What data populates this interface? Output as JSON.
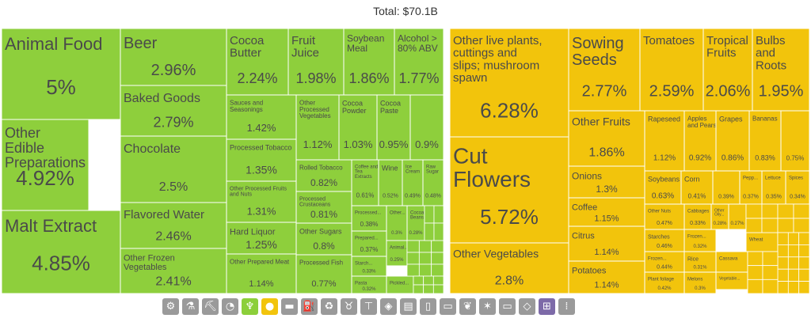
{
  "total_label": "Total: $70.1B",
  "colors": {
    "green": "#8ecf3c",
    "yellow": "#f2c40c",
    "stroke": "#ffffff",
    "text": "#4a4a4a"
  },
  "chart_data": {
    "type": "treemap",
    "title": "Total: $70.1B",
    "groups": [
      {
        "color": "green",
        "items": [
          {
            "name": "Animal Food",
            "share": 5.0
          },
          {
            "name": "Other Edible Preparations",
            "share": 4.92
          },
          {
            "name": "Malt Extract",
            "share": 4.85
          },
          {
            "name": "Beer",
            "share": 2.96
          },
          {
            "name": "Baked Goods",
            "share": 2.79
          },
          {
            "name": "Chocolate",
            "share": 2.5
          },
          {
            "name": "Flavored Water",
            "share": 2.46
          },
          {
            "name": "Other Frozen Vegetables",
            "share": 2.41
          },
          {
            "name": "Cocoa Butter",
            "share": 2.24
          },
          {
            "name": "Fruit Juice",
            "share": 1.98
          },
          {
            "name": "Soybean Meal",
            "share": 1.86
          },
          {
            "name": "Alcohol > 80% ABV",
            "share": 1.77
          },
          {
            "name": "Sauces and Seasonings",
            "share": 1.42
          },
          {
            "name": "Processed Tobacco",
            "share": 1.35
          },
          {
            "name": "Other Processed Fruits and Nuts",
            "share": 1.31
          },
          {
            "name": "Hard Liquor",
            "share": 1.25
          },
          {
            "name": "Other Prepared Meat",
            "share": 1.14
          },
          {
            "name": "Other Processed Vegetables",
            "share": 1.12
          },
          {
            "name": "Cocoa Powder",
            "share": 1.03
          },
          {
            "name": "Cocoa Paste",
            "share": 0.95
          },
          {
            "name": "",
            "share": 0.9
          },
          {
            "name": "Rolled Tobacco",
            "share": 0.82
          },
          {
            "name": "Processed Crustaceans",
            "share": 0.81
          },
          {
            "name": "Other Sugars",
            "share": 0.8
          },
          {
            "name": "Processed Fish",
            "share": 0.77
          },
          {
            "name": "Coffee and Tea Extracts",
            "share": 0.61
          },
          {
            "name": "Wine",
            "share": 0.52
          },
          {
            "name": "Ice Cream",
            "share": 0.49
          },
          {
            "name": "Raw Sugar",
            "share": 0.48
          },
          {
            "name": "Processed...",
            "share": 0.38
          },
          {
            "name": "Prepared...",
            "share": 0.37
          },
          {
            "name": "Starch...",
            "share": 0.33
          },
          {
            "name": "Pasta",
            "share": 0.32
          },
          {
            "name": "Other...",
            "share": 0.3
          },
          {
            "name": "Animal...",
            "share": 0.25
          },
          {
            "name": "Cocoa Beans",
            "share": 0.28
          },
          {
            "name": "Pickled...",
            "share": 0.0
          }
        ]
      },
      {
        "color": "yellow",
        "items": [
          {
            "name": "Other live plants, cuttings and slips; mushroom spawn",
            "share": 6.28
          },
          {
            "name": "Cut Flowers",
            "share": 5.72
          },
          {
            "name": "Other Vegetables",
            "share": 2.8
          },
          {
            "name": "Sowing Seeds",
            "share": 2.77
          },
          {
            "name": "Tomatoes",
            "share": 2.59
          },
          {
            "name": "Tropical Fruits",
            "share": 2.06
          },
          {
            "name": "Bulbs and Roots",
            "share": 1.95
          },
          {
            "name": "Other Fruits",
            "share": 1.86
          },
          {
            "name": "Onions",
            "share": 1.3
          },
          {
            "name": "Coffee",
            "share": 1.15
          },
          {
            "name": "Citrus",
            "share": 1.14
          },
          {
            "name": "Potatoes",
            "share": 1.14
          },
          {
            "name": "Rapeseed",
            "share": 1.12
          },
          {
            "name": "Apples and Pears",
            "share": 0.92
          },
          {
            "name": "Grapes",
            "share": 0.86
          },
          {
            "name": "Bananas",
            "share": 0.83
          },
          {
            "name": "",
            "share": 0.75
          },
          {
            "name": "Soybeans",
            "share": 0.63
          },
          {
            "name": "Corn",
            "share": 0.41
          },
          {
            "name": "",
            "share": 0.39
          },
          {
            "name": "Pepp...",
            "share": 0.37
          },
          {
            "name": "Lettuce",
            "share": 0.35
          },
          {
            "name": "Spices",
            "share": 0.34
          },
          {
            "name": "Other Nuts",
            "share": 0.47
          },
          {
            "name": "Cabbages",
            "share": 0.33
          },
          {
            "name": "Other Oily...",
            "share": 0.28
          },
          {
            "name": "",
            "share": 0.27
          },
          {
            "name": "Starches",
            "share": 0.46
          },
          {
            "name": "Frozen...",
            "share": 0.32
          },
          {
            "name": "Wheat",
            "share": 0.0
          },
          {
            "name": "Frozen...",
            "share": 0.44
          },
          {
            "name": "Rice",
            "share": 0.31
          },
          {
            "name": "Cassava",
            "share": 0.0
          },
          {
            "name": "Plant foliage",
            "share": 0.42
          },
          {
            "name": "Melons",
            "share": 0.3
          },
          {
            "name": "Vegetable...",
            "share": 0.0
          }
        ]
      }
    ]
  },
  "category_icons": [
    "gear-icon",
    "flask-icon",
    "pickaxe-icon",
    "gauge-icon",
    "wheat-icon",
    "fruit-icon",
    "anvil-icon",
    "fuel-icon",
    "recycle-icon",
    "cow-icon",
    "shirt-icon",
    "cube-icon",
    "document-icon",
    "bottle-icon",
    "truck-icon",
    "leaf-icon",
    "hide-icon",
    "ticket-icon",
    "diamond-icon",
    "easel-icon",
    "bullets-icon"
  ]
}
